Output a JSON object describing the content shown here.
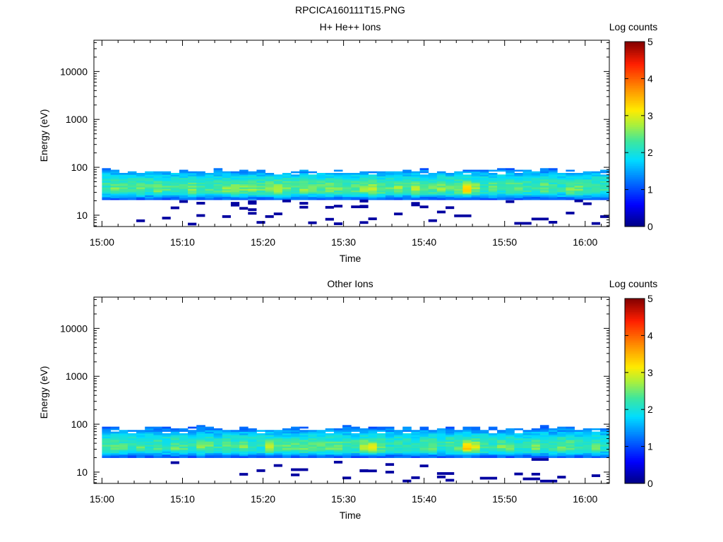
{
  "figure": {
    "title": "RPCICA160111T15.PNG"
  },
  "chart_data": [
    {
      "type": "heatmap",
      "title": "H+ He++ Ions",
      "xlabel": "Time",
      "ylabel": "Energy (eV)",
      "y_scale": "log",
      "xlim": [
        "14:59",
        "16:03"
      ],
      "ylim": [
        5.8,
        45000
      ],
      "x_ticks": [
        "15:00",
        "15:10",
        "15:20",
        "15:30",
        "15:40",
        "15:50",
        "16:00"
      ],
      "y_ticks": [
        "10",
        "100",
        "1000",
        "10000"
      ],
      "colorbar": {
        "label": "Log counts",
        "range": [
          0,
          5
        ],
        "ticks": [
          "0",
          "1",
          "2",
          "3",
          "4",
          "5"
        ]
      },
      "time_bins": {
        "start": "15:00",
        "end": "16:03",
        "step_seconds": 64
      },
      "band_energy_eV": [
        21,
        96
      ],
      "peak_energy_eV": 35,
      "peak_log_counts": 2.4,
      "hotspots": [
        {
          "time": "15:33",
          "energy_eV": 35,
          "log_counts": 3.0
        },
        {
          "time": "15:45",
          "energy_eV": 37,
          "log_counts": 3.2
        },
        {
          "time": "15:21",
          "energy_eV": 34,
          "log_counts": 2.8
        }
      ],
      "sparse_low_energy_counts": "isolated low-count bins (~0.2 log counts) between 6 and 20 eV",
      "grid": false
    },
    {
      "type": "heatmap",
      "title": "Other Ions",
      "xlabel": "Time",
      "ylabel": "Energy (eV)",
      "y_scale": "log",
      "xlim": [
        "14:59",
        "16:03"
      ],
      "ylim": [
        5.8,
        45000
      ],
      "x_ticks": [
        "15:00",
        "15:10",
        "15:20",
        "15:30",
        "15:40",
        "15:50",
        "16:00"
      ],
      "y_ticks": [
        "10",
        "100",
        "1000",
        "10000"
      ],
      "colorbar": {
        "label": "Log counts",
        "range": [
          0,
          5
        ],
        "ticks": [
          "0",
          "1",
          "2",
          "3",
          "4",
          "5"
        ]
      },
      "time_bins": {
        "start": "15:00",
        "end": "16:03",
        "step_seconds": 64
      },
      "band_energy_eV": [
        20,
        96
      ],
      "peak_energy_eV": 33,
      "peak_log_counts": 2.3,
      "hotspots": [
        {
          "time": "15:33",
          "energy_eV": 34,
          "log_counts": 3.0
        },
        {
          "time": "15:45",
          "energy_eV": 36,
          "log_counts": 3.3
        },
        {
          "time": "15:21",
          "energy_eV": 33,
          "log_counts": 2.7
        }
      ],
      "sparse_low_energy_counts": "isolated low-count bins (~0.2 log counts) between 6 and 20 eV",
      "grid": false
    }
  ]
}
